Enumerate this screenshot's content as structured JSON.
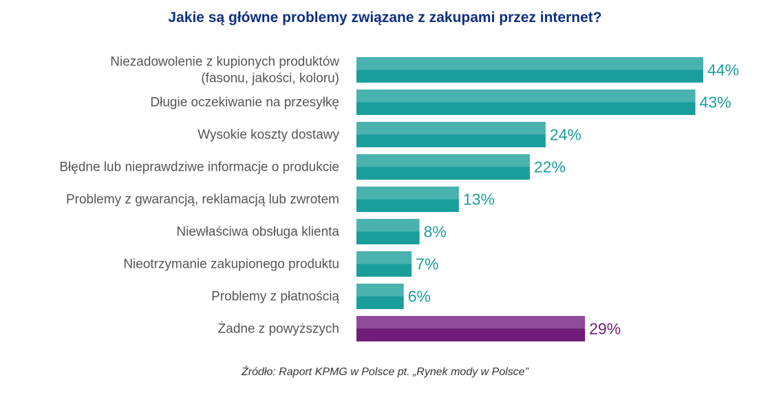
{
  "chart_data": {
    "type": "bar",
    "orientation": "horizontal",
    "title": "Jakie są główne problemy związane z zakupami przez internet?",
    "categories": [
      [
        "Niezadowolenie z kupionych produktów",
        "(fasonu, jakości, koloru)"
      ],
      [
        "Długie oczekiwanie na przesyłkę"
      ],
      [
        "Wysokie koszty dostawy"
      ],
      [
        "Błędne lub nieprawdziwe informacje o produkcie"
      ],
      [
        "Problemy z gwarancją, reklamacją lub zwrotem"
      ],
      [
        "Niewłaściwa obsługa klienta"
      ],
      [
        "Nieotrzymanie zakupionego produktu"
      ],
      [
        "Problemy z płatnością"
      ],
      [
        "Żadne z powyższych"
      ]
    ],
    "values": [
      44,
      43,
      24,
      22,
      13,
      8,
      7,
      6,
      29
    ],
    "value_labels": [
      "44%",
      "43%",
      "24%",
      "22%",
      "13%",
      "8%",
      "7%",
      "6%",
      "29%"
    ],
    "unit": "%",
    "xlim": [
      0,
      44
    ],
    "grid": false,
    "colors": {
      "teal_light": "#4ab3b0",
      "teal_dark": "#1a9e9c",
      "teal_label": "#1a9e9c",
      "purple_light": "#8f4c99",
      "purple_dark": "#701c78",
      "purple_label": "#701c78",
      "category_text": "#555555"
    },
    "highlight_index": 8
  },
  "source": "Źródło: Raport KPMG w Polsce pt. „Rynek mody w Polsce”"
}
